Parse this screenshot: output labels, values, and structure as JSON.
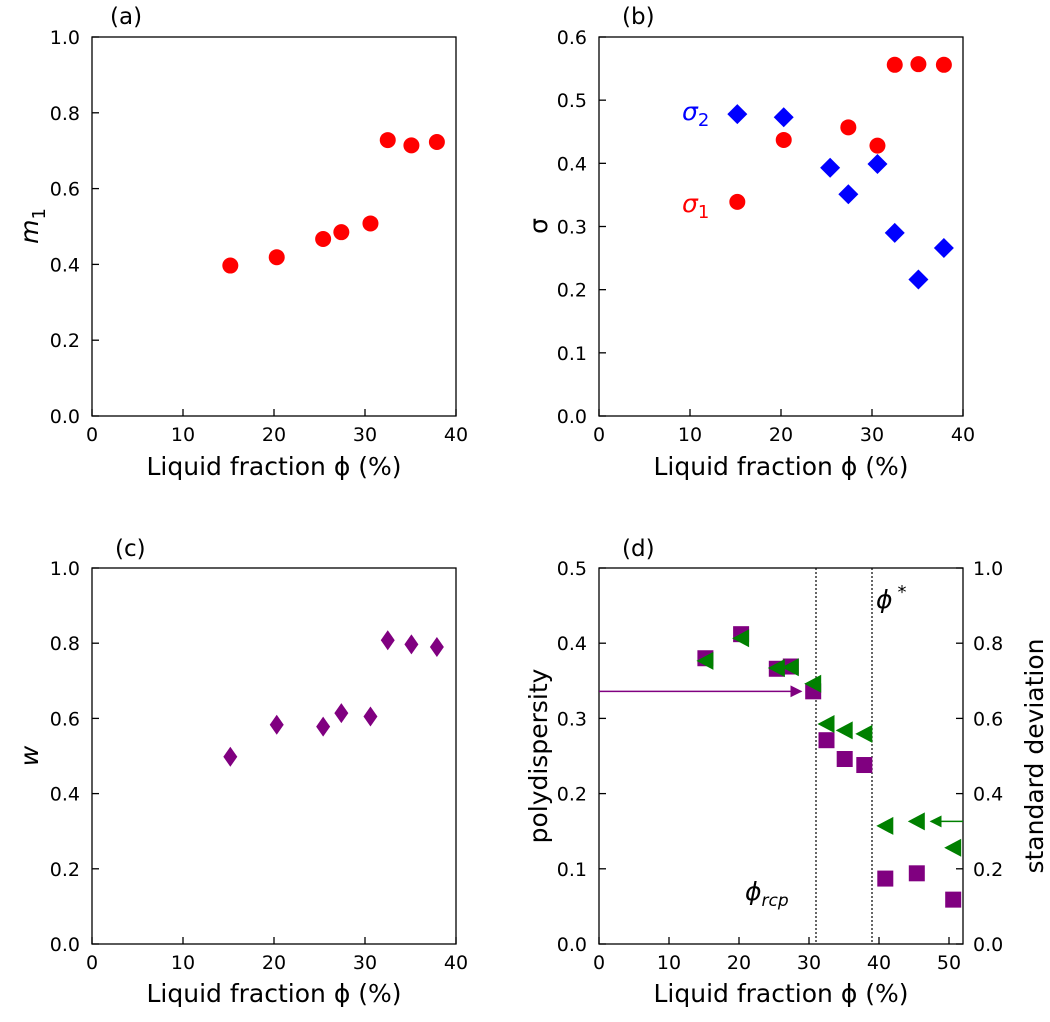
{
  "chart_data": [
    {
      "panel": "(a)",
      "type": "scatter",
      "xlabel": "Liquid fraction ϕ (%)",
      "ylabel": "m",
      "ylabel_sub": "1",
      "xlim": [
        0,
        40
      ],
      "ylim": [
        0,
        1.0
      ],
      "xticks": [
        0,
        10,
        20,
        30,
        40
      ],
      "yticks": [
        "0.0",
        "0.2",
        "0.4",
        "0.6",
        "0.8",
        "1.0"
      ],
      "series": [
        {
          "marker": "circle",
          "color": "#ff0000",
          "x": [
            15.2,
            20.3,
            25.4,
            27.4,
            30.6,
            32.5,
            35.1,
            37.9
          ],
          "y": [
            0.397,
            0.419,
            0.467,
            0.485,
            0.508,
            0.728,
            0.714,
            0.723
          ]
        }
      ]
    },
    {
      "panel": "(b)",
      "type": "scatter",
      "xlabel": "Liquid fraction ϕ (%)",
      "ylabel": "σ",
      "xlim": [
        0,
        40
      ],
      "ylim": [
        0,
        0.6
      ],
      "xticks": [
        0,
        10,
        20,
        30,
        40
      ],
      "yticks": [
        "0.0",
        "0.1",
        "0.2",
        "0.3",
        "0.4",
        "0.5",
        "0.6"
      ],
      "annotations": [
        {
          "text": "σ",
          "sub": "2",
          "color": "#0000ff"
        },
        {
          "text": "σ",
          "sub": "1",
          "color": "#ff0000"
        }
      ],
      "series": [
        {
          "name": "σ₁",
          "marker": "circle",
          "color": "#ff0000",
          "x": [
            15.2,
            20.3,
            27.4,
            30.6,
            32.5,
            35.1,
            37.9
          ],
          "y": [
            0.339,
            0.437,
            0.457,
            0.428,
            0.556,
            0.557,
            0.556
          ]
        },
        {
          "name": "σ₂",
          "marker": "diamond",
          "color": "#0000ff",
          "x": [
            15.2,
            20.3,
            25.4,
            27.4,
            30.6,
            32.5,
            35.1,
            37.9
          ],
          "y": [
            0.478,
            0.473,
            0.393,
            0.351,
            0.399,
            0.29,
            0.216,
            0.266
          ]
        }
      ]
    },
    {
      "panel": "(c)",
      "type": "scatter",
      "xlabel": "Liquid fraction ϕ (%)",
      "ylabel": "w",
      "xlim": [
        0,
        40
      ],
      "ylim": [
        0,
        1.0
      ],
      "xticks": [
        0,
        10,
        20,
        30,
        40
      ],
      "yticks": [
        "0.0",
        "0.2",
        "0.4",
        "0.6",
        "0.8",
        "1.0"
      ],
      "series": [
        {
          "marker": "thin-diamond",
          "color": "#800080",
          "x": [
            15.2,
            20.3,
            25.4,
            27.4,
            30.6,
            32.5,
            35.1,
            37.9
          ],
          "y": [
            0.498,
            0.583,
            0.578,
            0.614,
            0.605,
            0.808,
            0.797,
            0.79
          ]
        }
      ]
    },
    {
      "panel": "(d)",
      "type": "scatter",
      "xlabel": "Liquid fraction ϕ (%)",
      "ylabel": "polydispersity",
      "ylabel_right": "standard deviation",
      "xlim": [
        0,
        52
      ],
      "ylim": [
        0,
        0.5
      ],
      "ylim_right": [
        0,
        1.0
      ],
      "xticks": [
        0,
        10,
        20,
        30,
        40,
        50
      ],
      "yticks": [
        "0.0",
        "0.1",
        "0.2",
        "0.3",
        "0.4",
        "0.5"
      ],
      "yticks_right": [
        "0.0",
        "0.2",
        "0.4",
        "0.6",
        "0.8",
        "1.0"
      ],
      "vlines": [
        31,
        39
      ],
      "vline_labels": [
        {
          "text": "ϕ",
          "sub": "rcp"
        },
        {
          "text": "ϕ",
          "sup": "*"
        }
      ],
      "series": [
        {
          "axis": "left",
          "marker": "square",
          "color": "#800080",
          "x": [
            15.2,
            20.3,
            25.4,
            27.4,
            30.6,
            32.5,
            35.1,
            37.9,
            40.9,
            45.4,
            50.6
          ],
          "y": [
            0.38,
            0.412,
            0.366,
            0.369,
            0.336,
            0.271,
            0.246,
            0.238,
            0.087,
            0.094,
            0.059
          ]
        },
        {
          "axis": "right",
          "marker": "triangle-left",
          "color": "#008000",
          "x": [
            15.2,
            20.3,
            25.4,
            27.4,
            30.6,
            32.5,
            35.1,
            37.9,
            40.9,
            45.4,
            50.6
          ],
          "y": [
            0.753,
            0.813,
            0.734,
            0.736,
            0.692,
            0.585,
            0.568,
            0.559,
            0.314,
            0.326,
            0.256
          ]
        }
      ],
      "arrows": [
        {
          "to_series": "left",
          "color": "#800080"
        },
        {
          "to_series": "right",
          "color": "#008000"
        }
      ]
    }
  ]
}
